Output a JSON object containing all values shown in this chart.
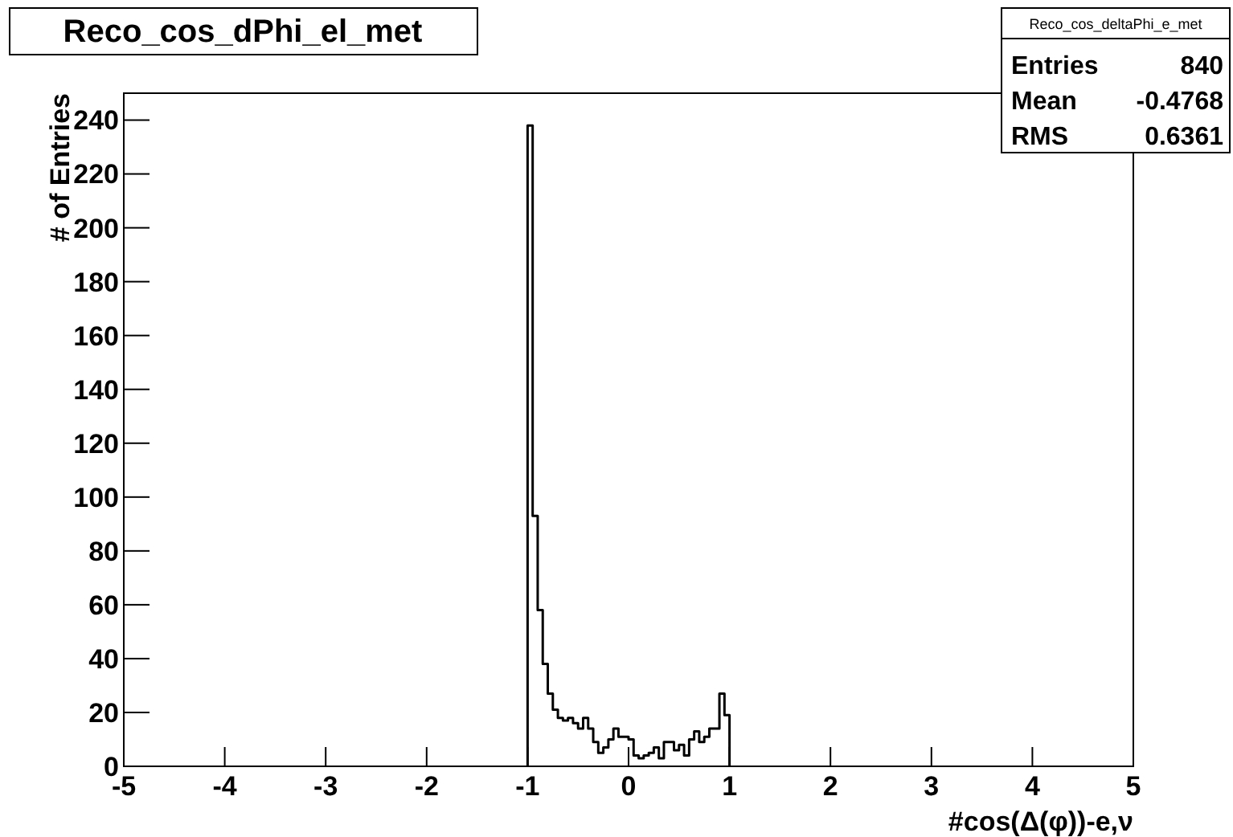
{
  "chart_data": {
    "type": "histogram",
    "title": "Reco_cos_dPhi_el_met",
    "xlabel": "#cos(Δ(φ))-e,ν",
    "ylabel": "# of Entries",
    "bins": [
      -1,
      -0.95,
      -0.9,
      -0.85,
      -0.8,
      -0.75,
      -0.7,
      -0.65,
      -0.6,
      -0.55,
      -0.5,
      -0.45,
      -0.4,
      -0.35,
      -0.3,
      -0.25,
      -0.2,
      -0.15,
      -0.1,
      -0.05,
      0,
      0.05,
      0.1,
      0.15,
      0.2,
      0.25,
      0.3,
      0.35,
      0.4,
      0.45,
      0.5,
      0.55,
      0.6,
      0.65,
      0.7,
      0.75,
      0.8,
      0.85,
      0.9,
      0.95,
      1
    ],
    "values": [
      238,
      93,
      58,
      38,
      27,
      21,
      18,
      17,
      18,
      16,
      14,
      18,
      14,
      9,
      5,
      7,
      10,
      14,
      11,
      11,
      10,
      4,
      3,
      4,
      5,
      7,
      3,
      9,
      9,
      6,
      8,
      4,
      10,
      13,
      9,
      11,
      14,
      14,
      27,
      19
    ],
    "color": "#000000",
    "xlim": [
      -5,
      5
    ],
    "xticks": [
      -5,
      -4,
      -3,
      -2,
      -1,
      0,
      1,
      2,
      3,
      4,
      5
    ],
    "ylim": [
      0,
      250
    ],
    "yticks": [
      0,
      20,
      40,
      60,
      80,
      100,
      120,
      140,
      160,
      180,
      200,
      220,
      240
    ],
    "annotations": [
      "Reco_cos_deltaPhi_e_met",
      "Entries",
      "840",
      "Mean",
      "-0.4768",
      "RMS",
      "0.6361"
    ]
  }
}
